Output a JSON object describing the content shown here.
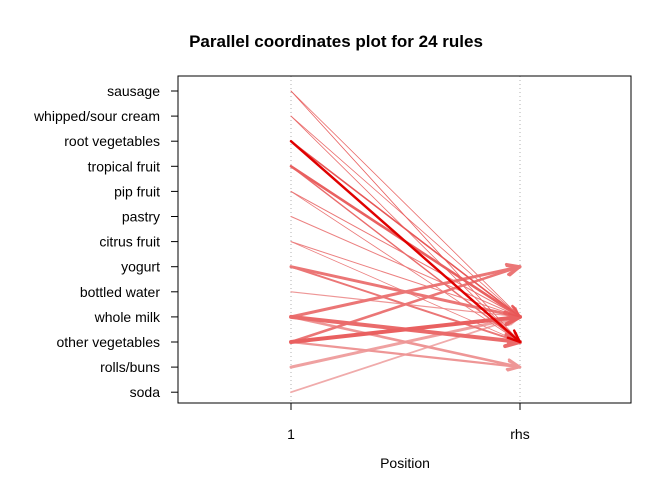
{
  "chart_data": {
    "type": "parallel-coordinates",
    "title": "Parallel coordinates plot for 24 rules",
    "xlabel": "Position",
    "x_categories": [
      "1",
      "rhs"
    ],
    "y_items": [
      "sausage",
      "whipped/sour cream",
      "root vegetables",
      "tropical fruit",
      "pip fruit",
      "pastry",
      "citrus fruit",
      "yogurt",
      "bottled water",
      "whole milk",
      "other vegetables",
      "rolls/buns",
      "soda"
    ],
    "grid": "vertical dotted",
    "colors": {
      "strong": "#e00000",
      "medium": "#ee8a8a",
      "light": "#f2c8c8",
      "frame": "#000000",
      "grid": "#b0b0b0"
    },
    "rules": [
      {
        "lhs": "root vegetables",
        "rhs": "other vegetables",
        "strength": 1.0,
        "width": 2.4
      },
      {
        "lhs": "sausage",
        "rhs": "other vegetables",
        "strength": 0.55,
        "width": 0.8
      },
      {
        "lhs": "sausage",
        "rhs": "whole milk",
        "strength": 0.5,
        "width": 0.8
      },
      {
        "lhs": "whipped/sour cream",
        "rhs": "other vegetables",
        "strength": 0.5,
        "width": 0.8
      },
      {
        "lhs": "whipped/sour cream",
        "rhs": "whole milk",
        "strength": 0.5,
        "width": 0.8
      },
      {
        "lhs": "root vegetables",
        "rhs": "whole milk",
        "strength": 0.6,
        "width": 1.6
      },
      {
        "lhs": "tropical fruit",
        "rhs": "whole milk",
        "strength": 0.55,
        "width": 2.6
      },
      {
        "lhs": "tropical fruit",
        "rhs": "other vegetables",
        "strength": 0.5,
        "width": 1.4
      },
      {
        "lhs": "pip fruit",
        "rhs": "whole milk",
        "strength": 0.45,
        "width": 1.0
      },
      {
        "lhs": "pip fruit",
        "rhs": "other vegetables",
        "strength": 0.45,
        "width": 0.8
      },
      {
        "lhs": "pastry",
        "rhs": "whole milk",
        "strength": 0.4,
        "width": 1.0
      },
      {
        "lhs": "citrus fruit",
        "rhs": "whole milk",
        "strength": 0.4,
        "width": 1.0
      },
      {
        "lhs": "citrus fruit",
        "rhs": "other vegetables",
        "strength": 0.4,
        "width": 0.8
      },
      {
        "lhs": "yogurt",
        "rhs": "whole milk",
        "strength": 0.45,
        "width": 3.0
      },
      {
        "lhs": "yogurt",
        "rhs": "other vegetables",
        "strength": 0.45,
        "width": 2.0
      },
      {
        "lhs": "bottled water",
        "rhs": "whole milk",
        "strength": 0.3,
        "width": 1.2
      },
      {
        "lhs": "whole milk",
        "rhs": "other vegetables",
        "strength": 0.5,
        "width": 4.0
      },
      {
        "lhs": "whole milk",
        "rhs": "yogurt",
        "strength": 0.45,
        "width": 3.0
      },
      {
        "lhs": "whole milk",
        "rhs": "rolls/buns",
        "strength": 0.3,
        "width": 2.6
      },
      {
        "lhs": "other vegetables",
        "rhs": "whole milk",
        "strength": 0.55,
        "width": 4.0
      },
      {
        "lhs": "other vegetables",
        "rhs": "yogurt",
        "strength": 0.45,
        "width": 2.6
      },
      {
        "lhs": "other vegetables",
        "rhs": "rolls/buns",
        "strength": 0.3,
        "width": 2.2
      },
      {
        "lhs": "rolls/buns",
        "rhs": "whole milk",
        "strength": 0.25,
        "width": 3.0
      },
      {
        "lhs": "soda",
        "rhs": "whole milk",
        "strength": 0.2,
        "width": 1.8
      }
    ]
  }
}
